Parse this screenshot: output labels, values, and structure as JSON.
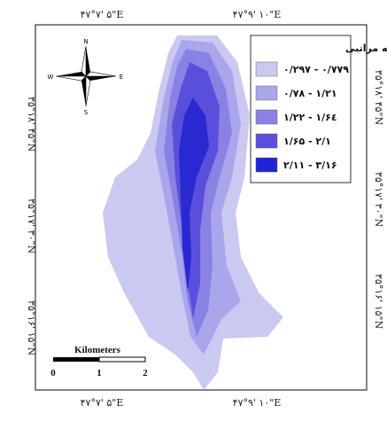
{
  "coordinates": {
    "top": [
      "۴۷°۷' ۵\"E",
      "۴۷°۹' ۱۰\"E"
    ],
    "bottom": [
      "۴۷°۷' ۵\"E",
      "۴۷°۹' ۱۰\"E"
    ],
    "left": [
      "۳۵°۱۸' ۴۵\"N",
      "۳۵°۱۷' ۳۰\"N",
      "۳۵°۱۶' ۱۵\"N"
    ],
    "right": [
      "۳۵°۱۸' ۴۵\"N",
      "۳۵°۱۷' ۳۰\"N",
      "۳۵°۱۶' ۱۵\"N"
    ]
  },
  "legend": {
    "title": "تحلیل سلسله مراتبی",
    "items": [
      {
        "label": "۰/۲۹۷ - ۰/۷۷۹",
        "color": "#c9c9f2"
      },
      {
        "label": "۰/۷۸ - ۱/۲۱",
        "color": "#a9a6ec"
      },
      {
        "label": "۱/۲۲ - ۱/۶٤",
        "color": "#8982e4"
      },
      {
        "label": "۱/۶۵ - ۲/۱",
        "color": "#5a4fdc"
      },
      {
        "label": "۲/۱۱ - ۳/۱۶",
        "color": "#2222d6"
      }
    ]
  },
  "scale_bar": {
    "title": "Kilometers",
    "labels": [
      "0",
      "1",
      "2"
    ]
  },
  "compass": {
    "n": "N",
    "s": "S",
    "e": "E",
    "w": "W"
  }
}
